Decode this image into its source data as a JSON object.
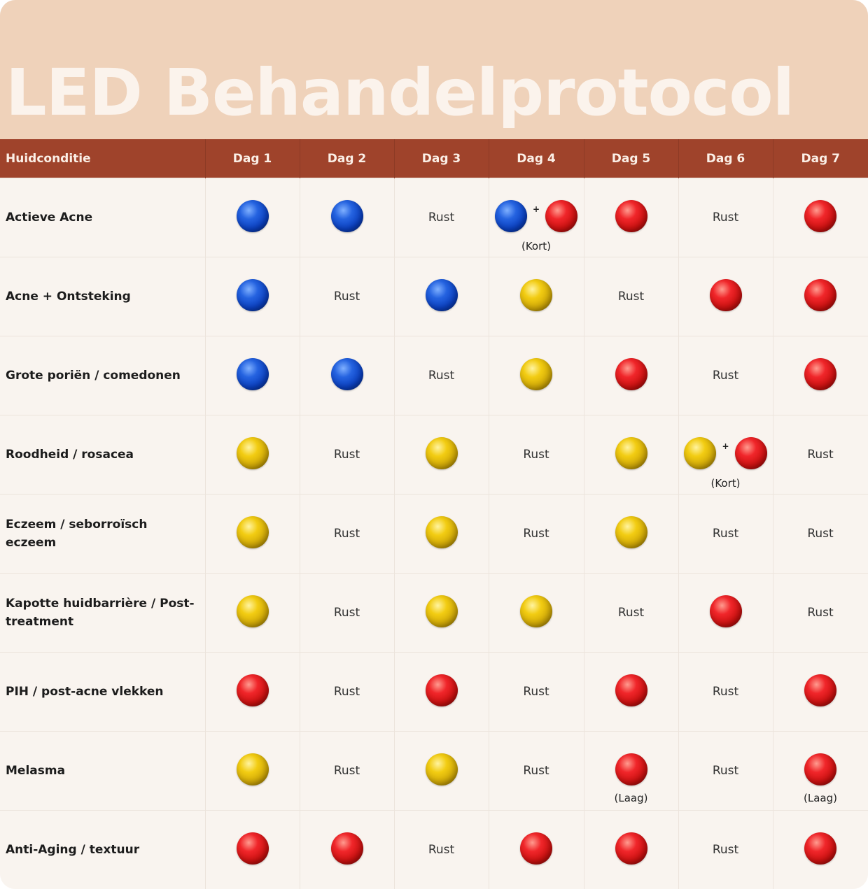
{
  "title": "LED Behandelprotocol",
  "header": {
    "condition": "Huidconditie",
    "days": [
      "Dag 1",
      "Dag 2",
      "Dag 3",
      "Dag 4",
      "Dag 5",
      "Dag 6",
      "Dag 7"
    ]
  },
  "rest_label": "Rust",
  "colors": {
    "blue": "#0a3fbf",
    "red": "#e0191b",
    "yellow": "#e2b80b",
    "header": "#9f432b",
    "banner": "#efd2ba"
  },
  "rows": [
    {
      "condition": "Actieve Acne",
      "cells": [
        {
          "type": "light",
          "colors": [
            "blue"
          ]
        },
        {
          "type": "light",
          "colors": [
            "blue"
          ]
        },
        {
          "type": "rest"
        },
        {
          "type": "light",
          "colors": [
            "blue",
            "red"
          ],
          "note": "(Kort)"
        },
        {
          "type": "light",
          "colors": [
            "red"
          ]
        },
        {
          "type": "rest"
        },
        {
          "type": "light",
          "colors": [
            "red"
          ]
        }
      ]
    },
    {
      "condition": "Acne + Ontsteking",
      "cells": [
        {
          "type": "light",
          "colors": [
            "blue"
          ]
        },
        {
          "type": "rest"
        },
        {
          "type": "light",
          "colors": [
            "blue"
          ]
        },
        {
          "type": "light",
          "colors": [
            "yellow"
          ]
        },
        {
          "type": "rest"
        },
        {
          "type": "light",
          "colors": [
            "red"
          ]
        },
        {
          "type": "light",
          "colors": [
            "red"
          ]
        }
      ]
    },
    {
      "condition": "Grote poriën / comedonen",
      "cells": [
        {
          "type": "light",
          "colors": [
            "blue"
          ]
        },
        {
          "type": "light",
          "colors": [
            "blue"
          ]
        },
        {
          "type": "rest"
        },
        {
          "type": "light",
          "colors": [
            "yellow"
          ]
        },
        {
          "type": "light",
          "colors": [
            "red"
          ]
        },
        {
          "type": "rest"
        },
        {
          "type": "light",
          "colors": [
            "red"
          ]
        }
      ]
    },
    {
      "condition": "Roodheid / rosacea",
      "cells": [
        {
          "type": "light",
          "colors": [
            "yellow"
          ]
        },
        {
          "type": "rest"
        },
        {
          "type": "light",
          "colors": [
            "yellow"
          ]
        },
        {
          "type": "rest"
        },
        {
          "type": "light",
          "colors": [
            "yellow"
          ]
        },
        {
          "type": "light",
          "colors": [
            "yellow",
            "red"
          ],
          "note": "(Kort)"
        },
        {
          "type": "rest"
        }
      ]
    },
    {
      "condition": "Eczeem / seborroïsch eczeem",
      "cells": [
        {
          "type": "light",
          "colors": [
            "yellow"
          ]
        },
        {
          "type": "rest"
        },
        {
          "type": "light",
          "colors": [
            "yellow"
          ]
        },
        {
          "type": "rest"
        },
        {
          "type": "light",
          "colors": [
            "yellow"
          ]
        },
        {
          "type": "rest"
        },
        {
          "type": "rest"
        }
      ]
    },
    {
      "condition": "Kapotte huidbarrière / Post-treatment",
      "cells": [
        {
          "type": "light",
          "colors": [
            "yellow"
          ]
        },
        {
          "type": "rest"
        },
        {
          "type": "light",
          "colors": [
            "yellow"
          ]
        },
        {
          "type": "light",
          "colors": [
            "yellow"
          ]
        },
        {
          "type": "rest"
        },
        {
          "type": "light",
          "colors": [
            "red"
          ]
        },
        {
          "type": "rest"
        }
      ]
    },
    {
      "condition": "PIH / post-acne vlekken",
      "cells": [
        {
          "type": "light",
          "colors": [
            "red"
          ]
        },
        {
          "type": "rest"
        },
        {
          "type": "light",
          "colors": [
            "red"
          ]
        },
        {
          "type": "rest"
        },
        {
          "type": "light",
          "colors": [
            "red"
          ]
        },
        {
          "type": "rest"
        },
        {
          "type": "light",
          "colors": [
            "red"
          ]
        }
      ]
    },
    {
      "condition": "Melasma",
      "cells": [
        {
          "type": "light",
          "colors": [
            "yellow"
          ]
        },
        {
          "type": "rest"
        },
        {
          "type": "light",
          "colors": [
            "yellow"
          ]
        },
        {
          "type": "rest"
        },
        {
          "type": "light",
          "colors": [
            "red"
          ],
          "note": "(Laag)"
        },
        {
          "type": "rest"
        },
        {
          "type": "light",
          "colors": [
            "red"
          ],
          "note": "(Laag)"
        }
      ]
    },
    {
      "condition": "Anti-Aging / textuur",
      "cells": [
        {
          "type": "light",
          "colors": [
            "red"
          ]
        },
        {
          "type": "light",
          "colors": [
            "red"
          ]
        },
        {
          "type": "rest"
        },
        {
          "type": "light",
          "colors": [
            "red"
          ]
        },
        {
          "type": "light",
          "colors": [
            "red"
          ]
        },
        {
          "type": "rest"
        },
        {
          "type": "light",
          "colors": [
            "red"
          ]
        }
      ]
    }
  ]
}
